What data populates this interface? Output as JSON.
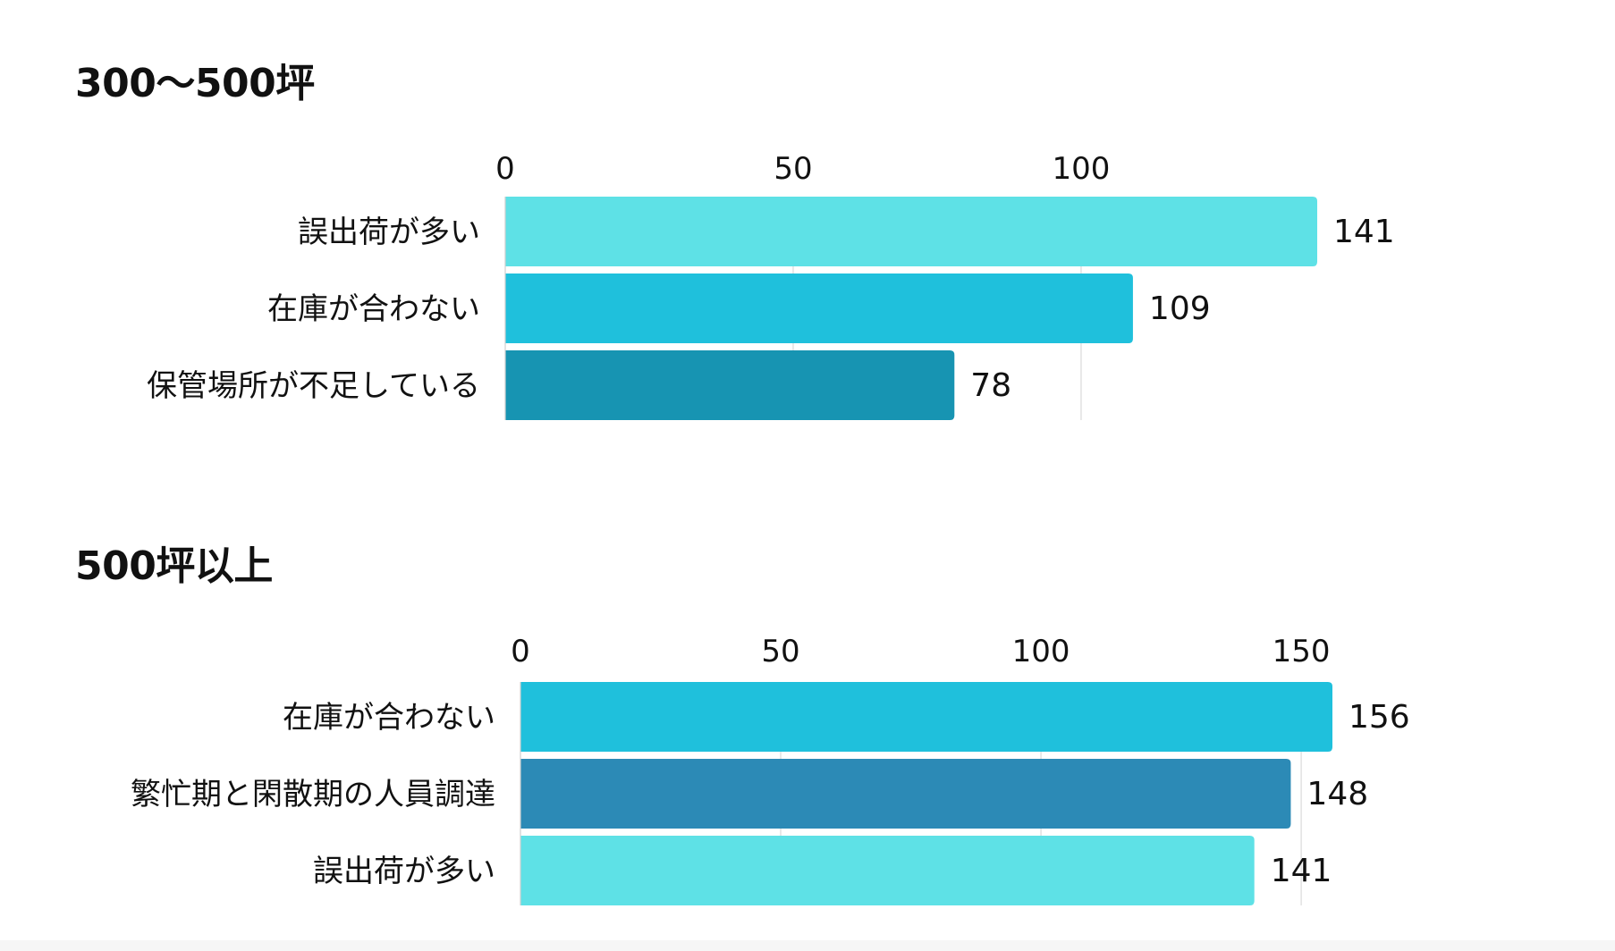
{
  "chart_data": [
    {
      "type": "bar",
      "orientation": "horizontal",
      "title": "300〜500坪",
      "categories": [
        "誤出荷が多い",
        "在庫が合わない",
        "保管場所が不足している"
      ],
      "values": [
        141,
        109,
        78
      ],
      "xticks": [
        0,
        50,
        100
      ],
      "xlim": [
        0,
        141
      ],
      "axis_position": "top",
      "grid": true,
      "data_labels": true,
      "colors": [
        "#5ee1e6",
        "#1fc0dc",
        "#1794b2"
      ]
    },
    {
      "type": "bar",
      "orientation": "horizontal",
      "title": "500坪以上",
      "categories": [
        "在庫が合わない",
        "繁忙期と閑散期の人員調達",
        "誤出荷が多い"
      ],
      "values": [
        156,
        148,
        141
      ],
      "xticks": [
        0,
        50,
        100,
        150
      ],
      "xlim": [
        0,
        156
      ],
      "axis_position": "top",
      "grid": true,
      "data_labels": true,
      "colors": [
        "#1fc0dc",
        "#2c8ab6",
        "#5ee1e6"
      ]
    }
  ],
  "style": {
    "grid_color": "#d9d9d9",
    "text_color": "#111111"
  }
}
